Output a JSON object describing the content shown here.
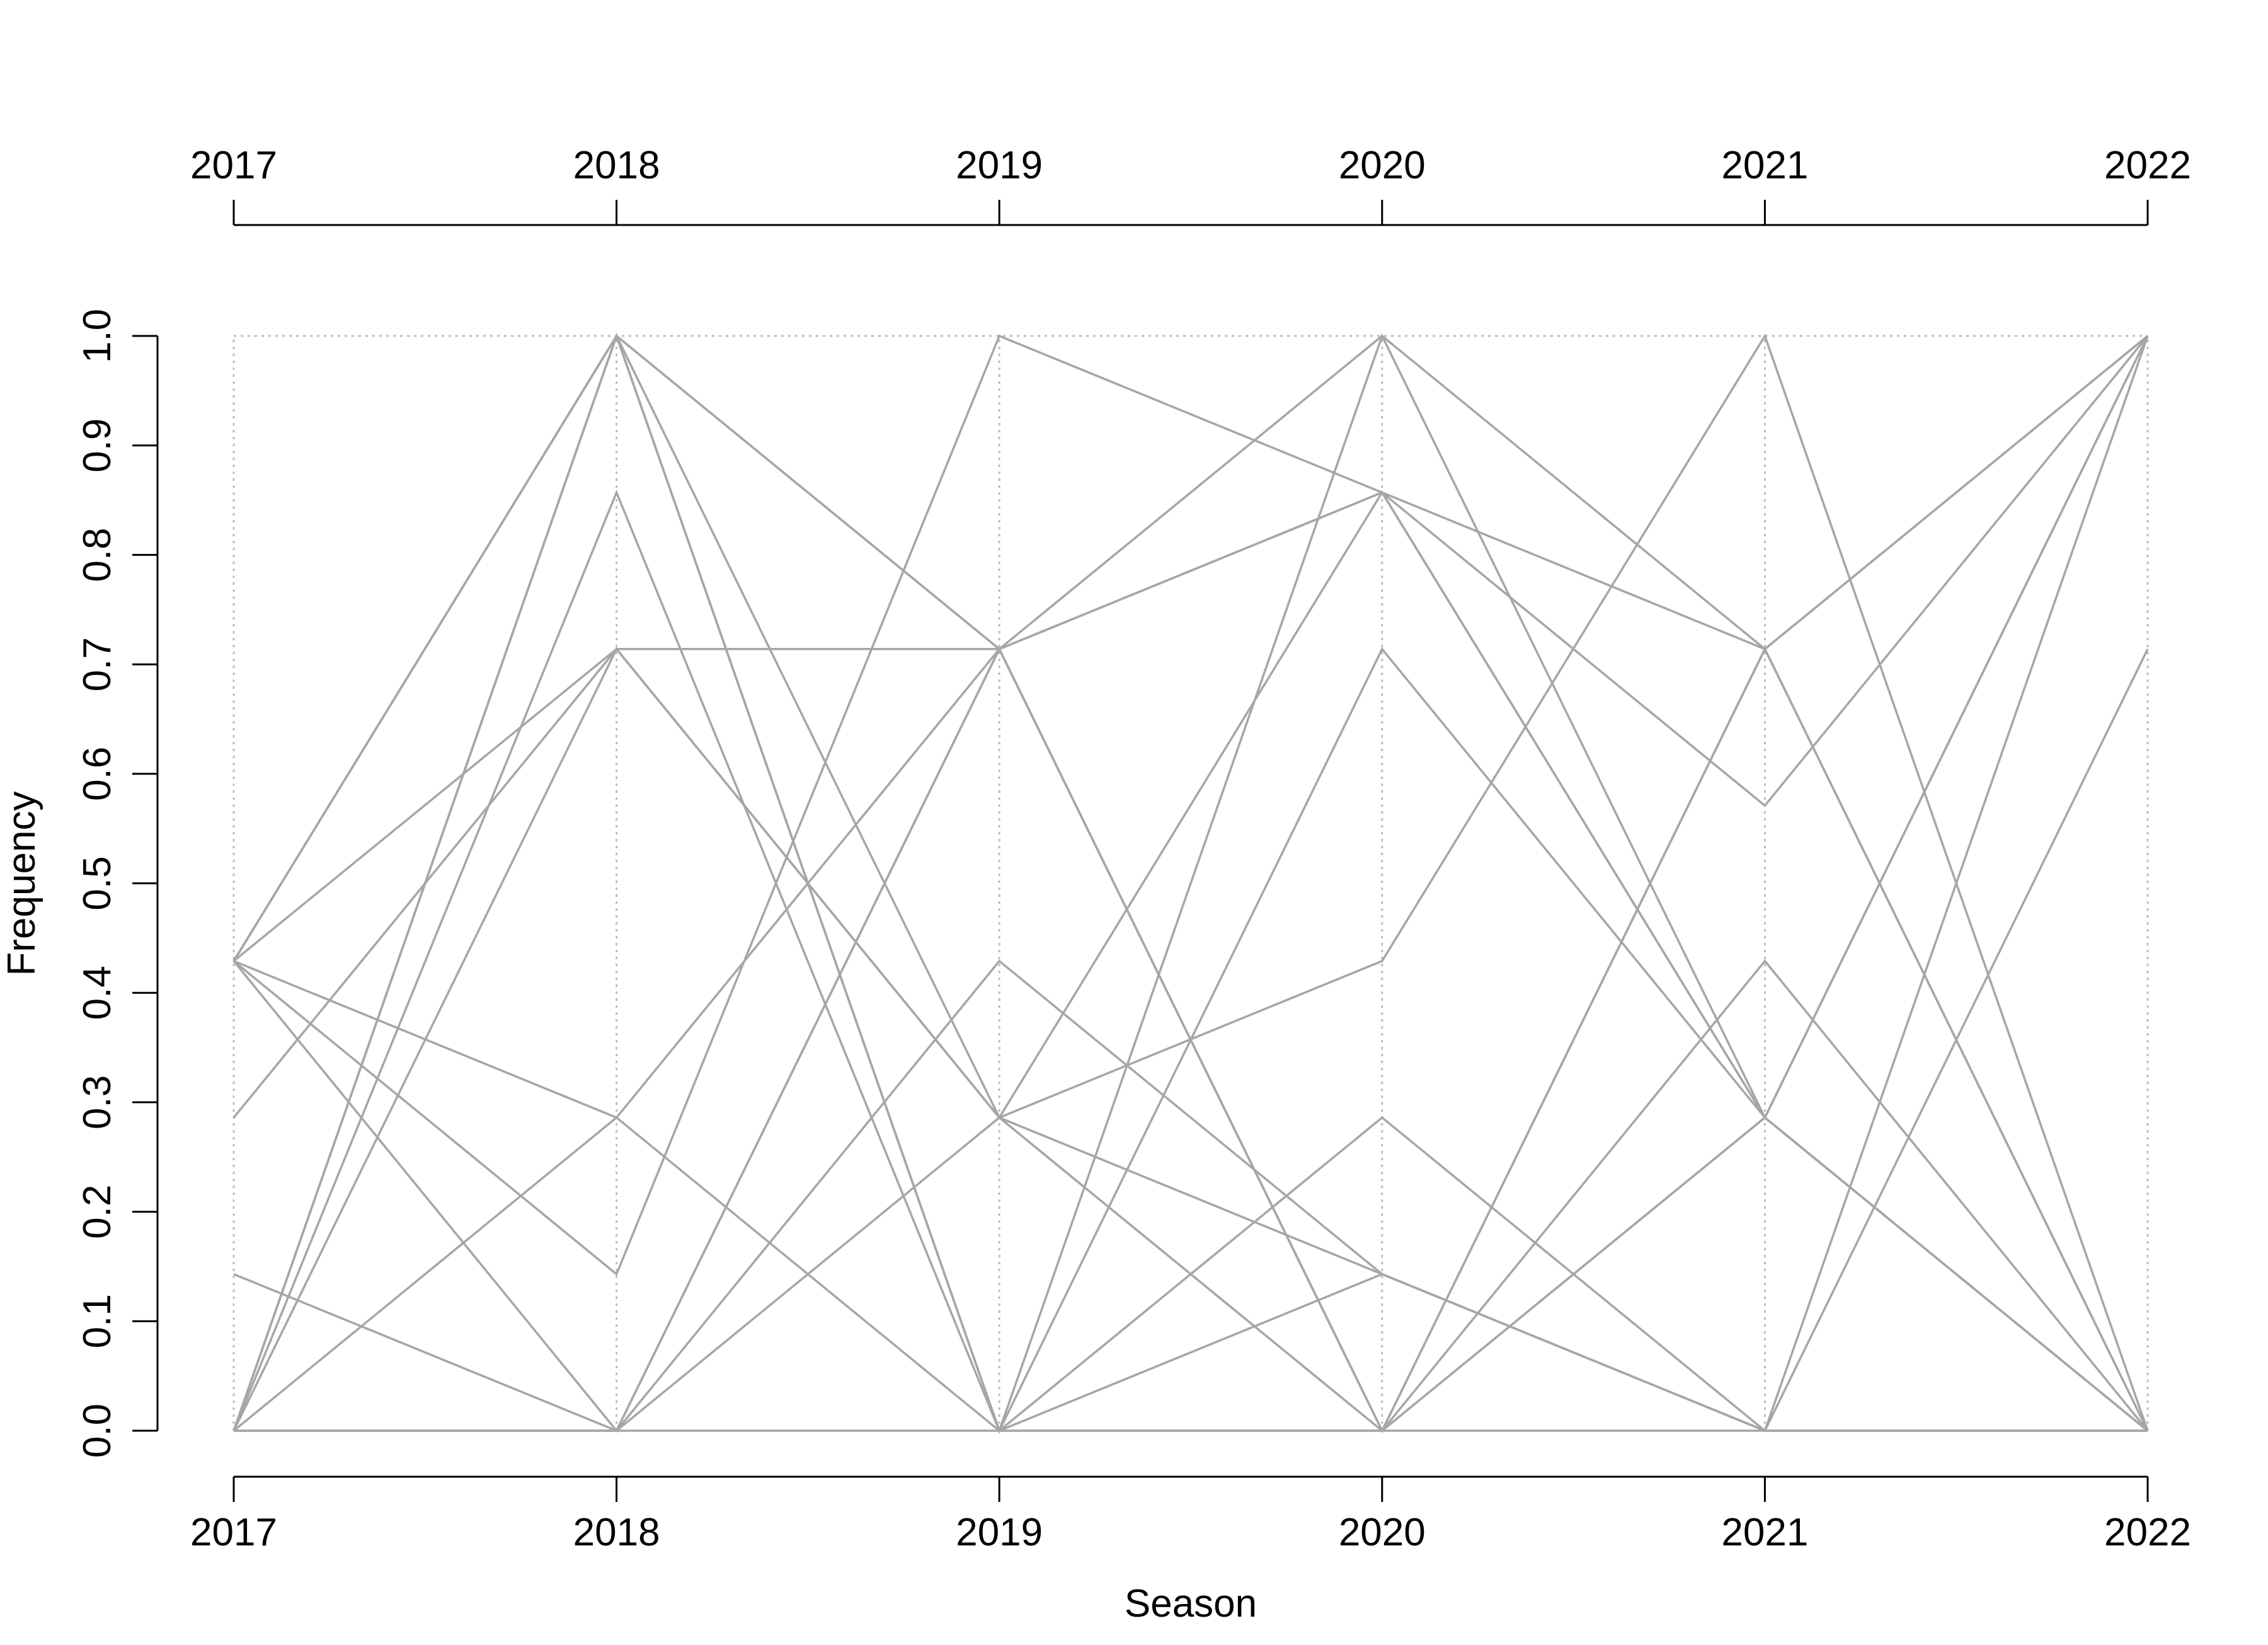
{
  "chart_data": {
    "type": "line",
    "title": "",
    "xlabel": "Season",
    "ylabel": "Frequency",
    "x": [
      "2017",
      "2018",
      "2019",
      "2020",
      "2021",
      "2022"
    ],
    "yticks": [
      "0.0",
      "0.1",
      "0.2",
      "0.3",
      "0.4",
      "0.5",
      "0.6",
      "0.7",
      "0.8",
      "0.9",
      "1.0"
    ],
    "ylim": [
      0,
      1
    ],
    "grid": "vertical dotted guide at each season",
    "line_color": "#a6a6a6",
    "guide_color": "#bdbdbd",
    "axis_color": "#000000",
    "series": [
      {
        "values": [
          0.429,
          1.0,
          0.714,
          1.0,
          0.714,
          0.0
        ]
      },
      {
        "values": [
          0.429,
          1.0,
          0.714,
          0.857,
          0.714,
          1.0
        ]
      },
      {
        "values": [
          0.429,
          0.714,
          0.714,
          0.857,
          0.571,
          1.0
        ]
      },
      {
        "values": [
          0.429,
          0.286,
          0.0,
          0.143,
          0.0,
          0.0
        ]
      },
      {
        "values": [
          0.429,
          0.143,
          1.0,
          0.857,
          0.286,
          0.0
        ]
      },
      {
        "values": [
          0.429,
          0.0,
          0.714,
          0.0,
          0.714,
          1.0
        ]
      },
      {
        "values": [
          0.286,
          0.714,
          0.286,
          0.0,
          0.286,
          1.0
        ]
      },
      {
        "values": [
          0.143,
          0.0,
          0.429,
          0.143,
          0.0,
          0.0
        ]
      },
      {
        "values": [
          0.0,
          1.0,
          0.286,
          0.429,
          1.0,
          0.0
        ]
      },
      {
        "values": [
          0.0,
          1.0,
          0.0,
          0.714,
          0.286,
          0.0
        ]
      },
      {
        "values": [
          0.0,
          1.0,
          0.0,
          1.0,
          0.286,
          0.0
        ]
      },
      {
        "values": [
          0.0,
          0.857,
          0.0,
          0.286,
          0.0,
          0.714
        ]
      },
      {
        "values": [
          0.0,
          0.286,
          0.714,
          0.0,
          0.429,
          0.0
        ]
      },
      {
        "values": [
          0.0,
          0.714,
          0.286,
          0.857,
          0.286,
          0.0
        ]
      },
      {
        "values": [
          0.0,
          0.0,
          0.286,
          0.143,
          0.0,
          0.0
        ]
      },
      {
        "values": [
          0.0,
          0.0,
          0.714,
          0.0,
          0.714,
          0.0
        ]
      },
      {
        "values": [
          0.0,
          0.0,
          0.0,
          0.0,
          0.286,
          1.0
        ]
      },
      {
        "values": [
          0.429,
          1.0,
          0.0,
          0.0,
          0.0,
          1.0
        ]
      }
    ]
  }
}
